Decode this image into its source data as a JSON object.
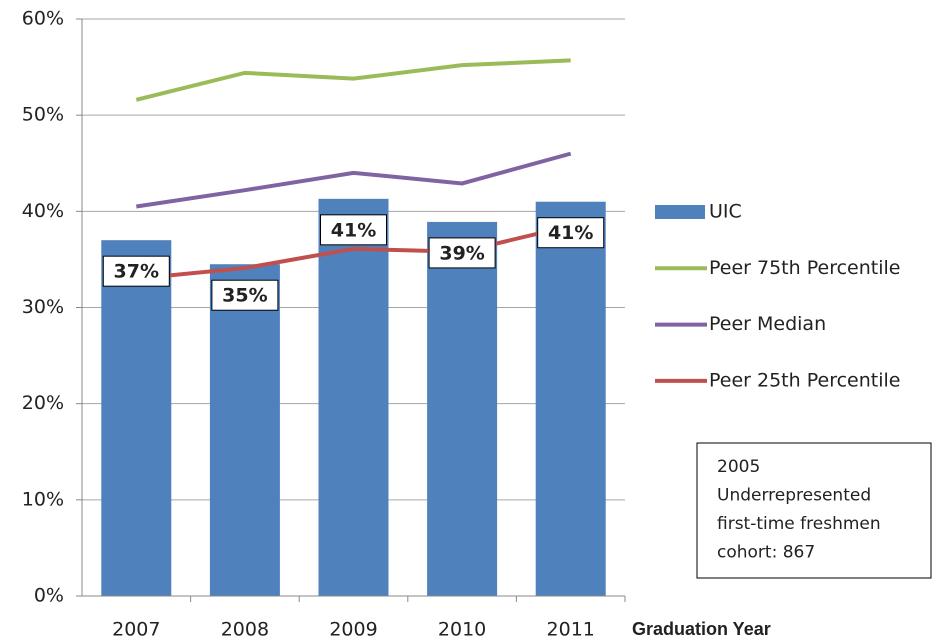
{
  "chart_data": {
    "type": "bar",
    "x_label": "Graduation Year",
    "categories": [
      "2007",
      "2008",
      "2009",
      "2010",
      "2011"
    ],
    "series": [
      {
        "name": "UIC",
        "type": "bar",
        "color": "#4f81bd",
        "values": [
          37,
          34.5,
          41.3,
          38.9,
          41
        ],
        "value_labels": [
          "37%",
          "35%",
          "41%",
          "39%",
          "41%"
        ]
      },
      {
        "name": "Peer 75th Percentile",
        "type": "line",
        "color": "#9bbb59",
        "values": [
          51.6,
          54.4,
          53.8,
          55.2,
          55.7
        ]
      },
      {
        "name": "Peer Median",
        "type": "line",
        "color": "#8064a2",
        "values": [
          40.5,
          42.2,
          44.0,
          42.9,
          46.0
        ]
      },
      {
        "name": "Peer 25th Percentile",
        "type": "line",
        "color": "#c0504d",
        "values": [
          33.0,
          34.1,
          36.1,
          35.8,
          38.5
        ]
      }
    ],
    "ylim": [
      0,
      60
    ],
    "yticks": [
      {
        "value": 0,
        "label": "0%"
      },
      {
        "value": 10,
        "label": "10%"
      },
      {
        "value": 20,
        "label": "20%"
      },
      {
        "value": 30,
        "label": "30%"
      },
      {
        "value": 40,
        "label": "40%"
      },
      {
        "value": 50,
        "label": "50%"
      },
      {
        "value": 60,
        "label": "60%"
      }
    ],
    "grid": true,
    "legend": "right",
    "annotation": [
      "2005",
      "Underrepresented",
      "first-time freshmen",
      "cohort: 867"
    ]
  }
}
